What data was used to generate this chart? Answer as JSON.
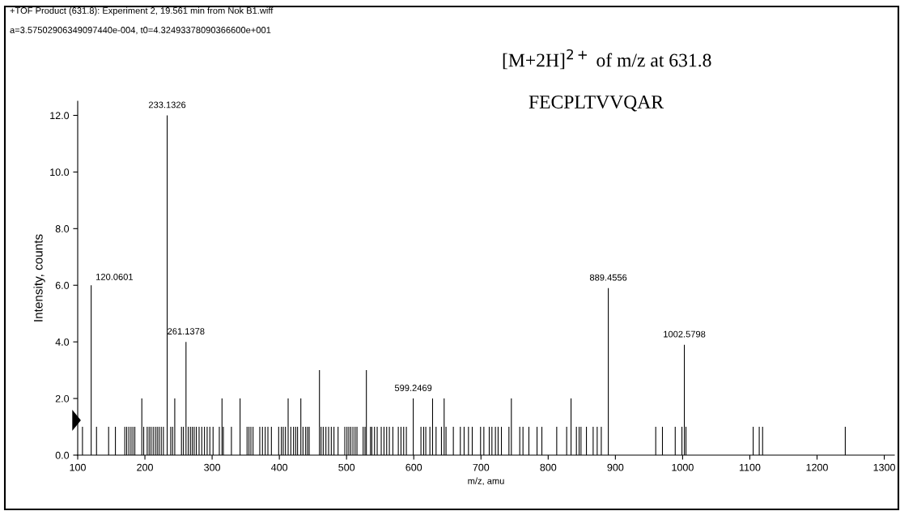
{
  "chart_data": {
    "type": "bar",
    "xlabel": "m/z, amu",
    "ylabel": "Intensity, counts",
    "annotations": [
      "+TOF Product (631.8): Experiment 2, 19.561 min from Nok B1.wiff",
      "a=3.57502906349097440e-004, t0=4.32493378090366600e+001",
      "[M+2H]$^{2+}$ of m/z at 631.8",
      "FECPLTVVQAR",
      {
        "text": "120.0601",
        "x": 120.0601,
        "y": 6.0
      },
      {
        "text": "233.1326",
        "x": 233.1326,
        "y": 12.0
      },
      {
        "text": "261.1378",
        "x": 261.1378,
        "y": 4.0
      },
      {
        "text": "599.2469",
        "x": 599.2469,
        "y": 2.0
      },
      {
        "text": "889.4556",
        "x": 889.4556,
        "y": 5.9
      },
      {
        "text": "1002.5798",
        "x": 1002.5798,
        "y": 3.9
      }
    ],
    "series": [
      {
        "color": "#000000",
        "x": [
          107.1,
          120.0601,
          128.0,
          146.0,
          156.1,
          170.1,
          172.9,
          176.1,
          179.3,
          182.2,
          185.0,
          195.4,
          198.2,
          203.4,
          206.3,
          209.1,
          212.3,
          215.5,
          218.3,
          221.1,
          224.3,
          227.5,
          233.1326,
          238.4,
          241.2,
          244.4,
          254.4,
          257.3,
          261.1378,
          264.5,
          267.7,
          270.5,
          273.3,
          276.5,
          280.6,
          284.6,
          288.6,
          292.6,
          296.6,
          301.4,
          310.7,
          314.7,
          316.7,
          328.7,
          341.6,
          352.0,
          354.8,
          357.7,
          360.9,
          370.9,
          374.9,
          379.0,
          383.0,
          388.2,
          399.0,
          403.0,
          405.8,
          409.1,
          413.1,
          417.1,
          421.1,
          424.3,
          427.1,
          432.0,
          435.2,
          439.2,
          442.0,
          444.4,
          459.7,
          462.1,
          465.3,
          469.3,
          473.3,
          477.3,
          481.3,
          487.4,
          497.4,
          500.6,
          503.4,
          506.3,
          509.5,
          512.7,
          515.5,
          524.7,
          527.5,
          529.5,
          535.6,
          537.6,
          541.6,
          545.6,
          551.6,
          555.7,
          559.7,
          563.7,
          568.9,
          577.0,
          581.0,
          585.0,
          589.0,
          599.2469,
          610.7,
          614.7,
          617.9,
          624.0,
          628.0,
          633.2,
          641.2,
          645.2,
          648.0,
          658.9,
          669.3,
          674.9,
          681.4,
          687.0,
          699.4,
          704.3,
          712.3,
          716.3,
          721.5,
          725.5,
          730.4,
          741.6,
          745.2,
          757.7,
          762.5,
          771.3,
          783.4,
          790.6,
          812.7,
          827.5,
          834.0,
          842.0,
          846.0,
          848.8,
          856.9,
          866.9,
          872.9,
          879.0,
          889.4556,
          960,
          970,
          989,
          999,
          1002.5798,
          1005,
          1105,
          1114,
          1119,
          1242
        ],
        "values": [
          1,
          6.0,
          1,
          1,
          1,
          1,
          1,
          1,
          1,
          1,
          1,
          2,
          1,
          1,
          1,
          1,
          1,
          1,
          1,
          1,
          1,
          1,
          12.0,
          1,
          1,
          2,
          1,
          1,
          4.0,
          1,
          1,
          1,
          1,
          1,
          1,
          1,
          1,
          1,
          1,
          1,
          1,
          2,
          1,
          1,
          2,
          1,
          1,
          1,
          1,
          1,
          1,
          1,
          1,
          1,
          1,
          1,
          1,
          1,
          2,
          1,
          1,
          1,
          1,
          2,
          1,
          1,
          1,
          1,
          3,
          1,
          1,
          1,
          1,
          1,
          1,
          1,
          1,
          1,
          1,
          1,
          1,
          1,
          1,
          1,
          1,
          3,
          1,
          1,
          1,
          1,
          1,
          1,
          1,
          1,
          1,
          1,
          1,
          1,
          1,
          2,
          1,
          1,
          1,
          1,
          2,
          1,
          1,
          2,
          1,
          1,
          1,
          1,
          1,
          1,
          1,
          1,
          1,
          1,
          1,
          1,
          1,
          1,
          2,
          1,
          1,
          1,
          1,
          1,
          1,
          1,
          2,
          1,
          1,
          1,
          1,
          1,
          1,
          1,
          5.9,
          1,
          1,
          1,
          1,
          3.9,
          1,
          1,
          1,
          1,
          1
        ]
      }
    ],
    "xlim": [
      100,
      1315
    ],
    "ylim": [
      0,
      12.5
    ],
    "xticks": [
      100,
      200,
      300,
      400,
      500,
      600,
      700,
      800,
      900,
      1000,
      1100,
      1200,
      1300
    ],
    "yticks": [
      {
        "value": 0,
        "label": "0.0"
      },
      {
        "value": 2,
        "label": "2.0"
      },
      {
        "value": 4,
        "label": "4.0"
      },
      {
        "value": 6,
        "label": "6.0"
      },
      {
        "value": 8,
        "label": "8.0"
      },
      {
        "value": 10,
        "label": "10.0"
      },
      {
        "value": 12,
        "label": "12.0"
      }
    ],
    "grid": false,
    "legend": false
  }
}
